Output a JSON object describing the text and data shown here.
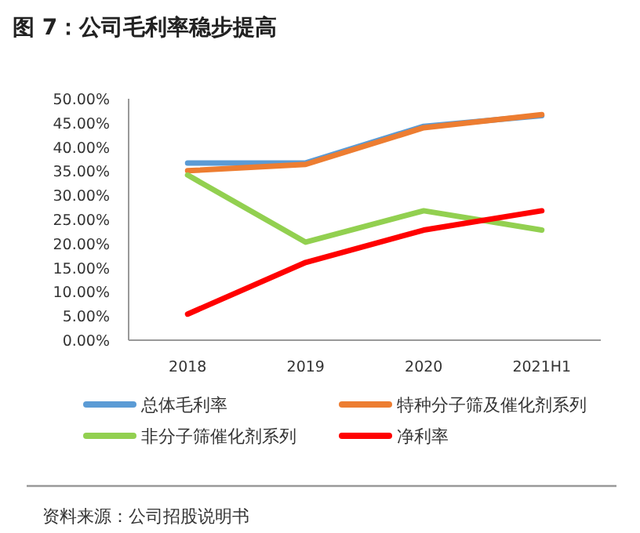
{
  "chart_data": {
    "type": "line",
    "title": "图 7：公司毛利率稳步提高",
    "categories": [
      "2018",
      "2019",
      "2020",
      "2021H1"
    ],
    "series": [
      {
        "name": "总体毛利率",
        "color": "#5b9bd5",
        "values": [
          36.7,
          36.7,
          44.3,
          46.5
        ]
      },
      {
        "name": "特种分子筛及催化剂系列",
        "color": "#ed7d31",
        "values": [
          35.1,
          36.4,
          44.0,
          46.7
        ]
      },
      {
        "name": "非分子筛催化剂系列",
        "color": "#92d050",
        "values": [
          34.2,
          20.3,
          26.8,
          22.8
        ]
      },
      {
        "name": "净利率",
        "color": "#ff0000",
        "values": [
          5.4,
          16.1,
          22.8,
          26.8
        ]
      }
    ],
    "ylim": [
      0,
      50
    ],
    "yticks": [
      {
        "value": 0,
        "label": "0.00%"
      },
      {
        "value": 5,
        "label": "5.00%"
      },
      {
        "value": 10,
        "label": "10.00%"
      },
      {
        "value": 15,
        "label": "15.00%"
      },
      {
        "value": 20,
        "label": "20.00%"
      },
      {
        "value": 25,
        "label": "25.00%"
      },
      {
        "value": 30,
        "label": "30.00%"
      },
      {
        "value": 35,
        "label": "35.00%"
      },
      {
        "value": 40,
        "label": "40.00%"
      },
      {
        "value": 45,
        "label": "45.00%"
      },
      {
        "value": 50,
        "label": "50.00%"
      }
    ],
    "grid": false,
    "legend": "bottom",
    "marker": "none",
    "line_style": "solid",
    "annotations": [
      "资料来源：公司招股说明书"
    ]
  }
}
